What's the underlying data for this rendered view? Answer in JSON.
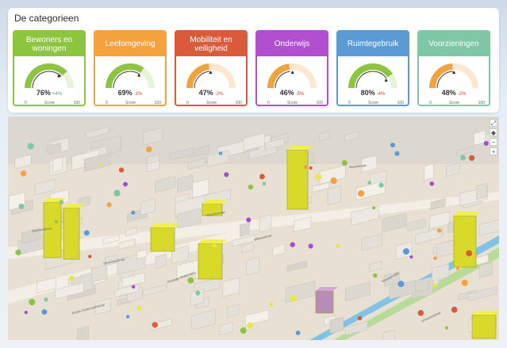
{
  "panel": {
    "title": "De categorieen"
  },
  "gauge_scale": {
    "min": "0",
    "max": "100",
    "score_label": "Score"
  },
  "categories": [
    {
      "name": "Bewoners en woningen",
      "value": "76%",
      "change": "+4%",
      "score": 76,
      "marker": 72,
      "color": "#8cc63f",
      "track": "#e8f4d6",
      "change_color": "#4caf50"
    },
    {
      "name": "Leefomgeving",
      "value": "69%",
      "change": "-1%",
      "score": 69,
      "marker": 70,
      "color": "#f4a23b",
      "track": "#e8f4d6",
      "fill": "#8cc63f",
      "change_color": "#e53935"
    },
    {
      "name": "Mobiliteit en veiligheid",
      "value": "47%",
      "change": "-2%",
      "score": 47,
      "marker": 49,
      "color": "#db5a3a",
      "track": "#fde7cf",
      "fill": "#f4a23b",
      "change_color": "#e53935"
    },
    {
      "name": "Onderwijs",
      "value": "46%",
      "change": "-5%",
      "score": 46,
      "marker": 51,
      "color": "#b14fd0",
      "track": "#fde7cf",
      "fill": "#f4a23b",
      "change_color": "#e53935"
    },
    {
      "name": "Ruimtegebruik",
      "value": "80%",
      "change": "-4%",
      "score": 80,
      "marker": 84,
      "color": "#5b9bd5",
      "track": "#e8f4d6",
      "fill": "#8cc63f",
      "change_color": "#e53935"
    },
    {
      "name": "Voorzieningen",
      "value": "48%",
      "change": "-2%",
      "score": 48,
      "marker": 50,
      "color": "#7ec8a5",
      "track": "#fde7cf",
      "fill": "#f4a23b",
      "change_color": "#e53935"
    }
  ],
  "map": {
    "controls": {
      "fullscreen": "⤢",
      "compass": "◆",
      "zoom_out": "−",
      "zoom_in": "+"
    },
    "street_labels": [
      "Utrechtsestraat",
      "Plantage Middenlaan",
      "Sarphatistraat",
      "Weesperzijde",
      "Wibautstraat",
      "Ruyschstraat",
      "Eerste Oosterparkstraat",
      "Mauritskade",
      "Linnaeusstraat"
    ]
  }
}
